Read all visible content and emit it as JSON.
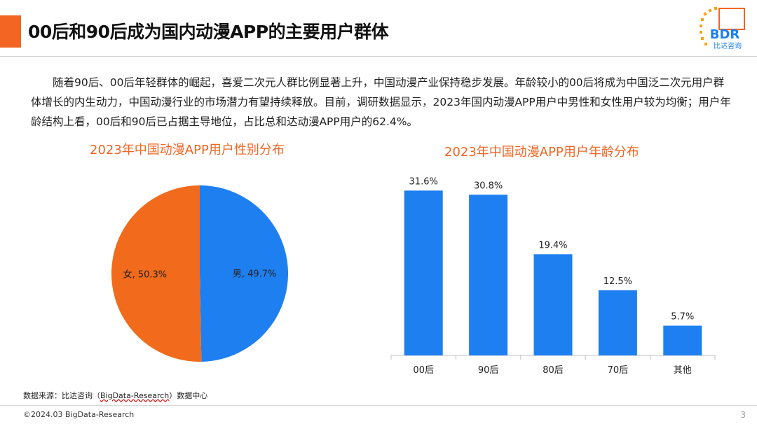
{
  "header": {
    "title": "00后和90后成为国内动漫APP的主要用户群体"
  },
  "logo": {
    "mark": "BDR",
    "name": "比达咨询"
  },
  "intro": {
    "text": "随着90后、00后年轻群体的崛起，喜爱二次元人群比例显著上升，中国动漫产业保持稳步发展。年龄较小的00后将成为中国泛二次元用户群体增长的内生动力，中国动漫行业的市场潜力有望持续释放。目前，调研数据显示，2023年国内动漫APP用户中男性和女性用户较为均衡；用户年龄结构上看，00后和90后已占据主导地位，占比总和达动漫APP用户的62.4%。"
  },
  "colors": {
    "accent": "#f26522",
    "blue": "#1e7ff0",
    "orange": "#f26a1b"
  },
  "source": {
    "prefix": "数据来源：比达咨询（",
    "org": "BigData-Research",
    "suffix": "）数据中心"
  },
  "footer": {
    "copyright": "©2024.03 BigData-Research",
    "page": "3"
  },
  "chart_data": [
    {
      "type": "pie",
      "title": "2023年中国动漫APP用户性别分布",
      "slices": [
        {
          "label": "男",
          "value": 49.7,
          "display": "男, 49.7%",
          "color": "#1e7ff0"
        },
        {
          "label": "女",
          "value": 50.3,
          "display": "女, 50.3%",
          "color": "#f26a1b"
        }
      ]
    },
    {
      "type": "bar",
      "title": "2023年中国动漫APP用户年龄分布",
      "categories": [
        "00后",
        "90后",
        "80后",
        "70后",
        "其他"
      ],
      "values": [
        31.6,
        30.8,
        19.4,
        12.5,
        5.7
      ],
      "labels": [
        "31.6%",
        "30.8%",
        "19.4%",
        "12.5%",
        "5.7%"
      ],
      "ylim": [
        0,
        35
      ],
      "color": "#1e7ff0"
    }
  ]
}
